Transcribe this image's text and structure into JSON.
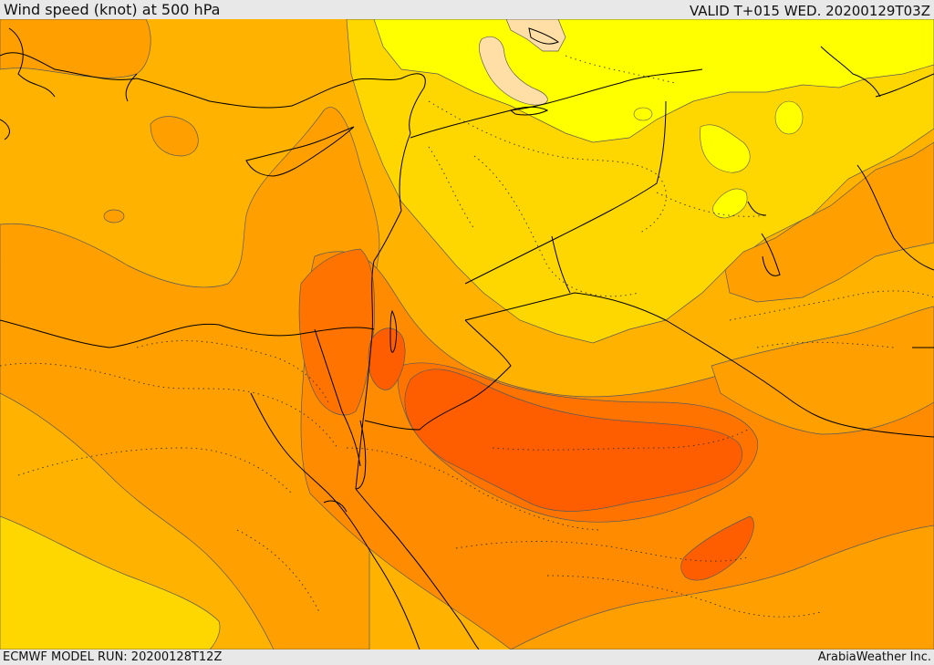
{
  "header": {
    "title": "Wind speed (knot) at 500 hPa",
    "valid_time": "VALID T+015 WED. 20200129T03Z"
  },
  "footer": {
    "model_run": "ECMWF MODEL RUN: 20200128T12Z",
    "credit": "ArabiaWeather Inc."
  },
  "colors": {
    "band_light": "#ffdfa6",
    "band_yellow": "#ffff00",
    "band_gold": "#ffd700",
    "band_amber": "#ffb300",
    "band_orange": "#ffa000",
    "band_dark_orange": "#ff8c00",
    "band_red_orange": "#ff7400",
    "band_red": "#ff5e00",
    "coastline": "#000000",
    "contour_line": "#5a5a5a"
  }
}
